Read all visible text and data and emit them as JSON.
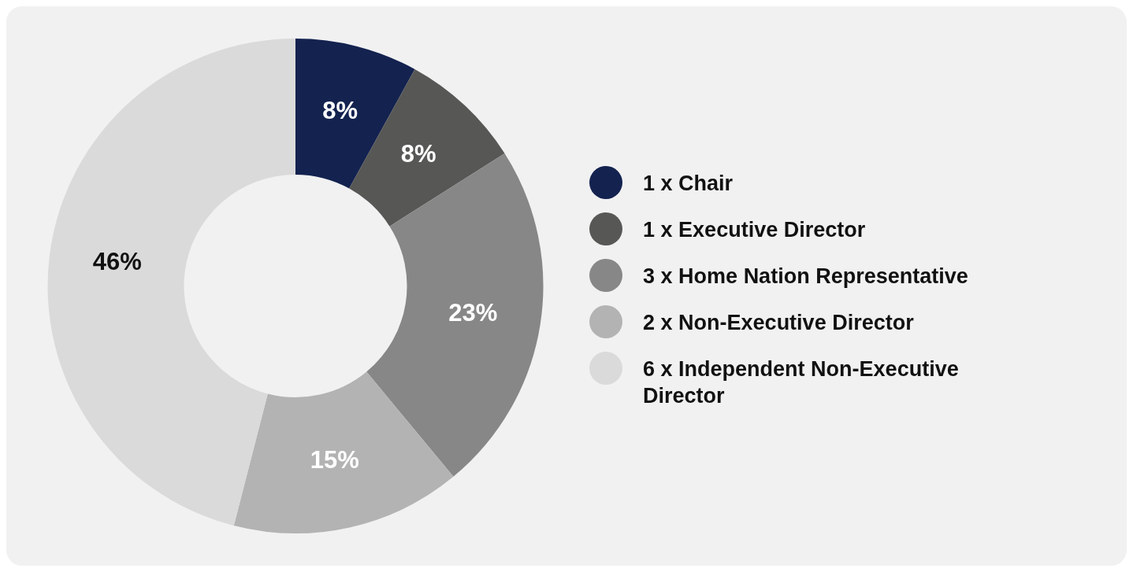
{
  "chart_data": {
    "type": "donut",
    "categories": [
      "1 x Chair",
      "1 x Executive Director",
      "3 x Home Nation Representative",
      "2 x Non-Executive Director",
      "6 x Independent Non-Executive Director"
    ],
    "values": [
      8,
      8,
      23,
      15,
      46
    ],
    "colors": [
      "#13224f",
      "#575755",
      "#878787",
      "#b3b3b3",
      "#dadada"
    ],
    "value_labels": [
      "8%",
      "8%",
      "23%",
      "15%",
      "46%"
    ],
    "legend": "right"
  }
}
